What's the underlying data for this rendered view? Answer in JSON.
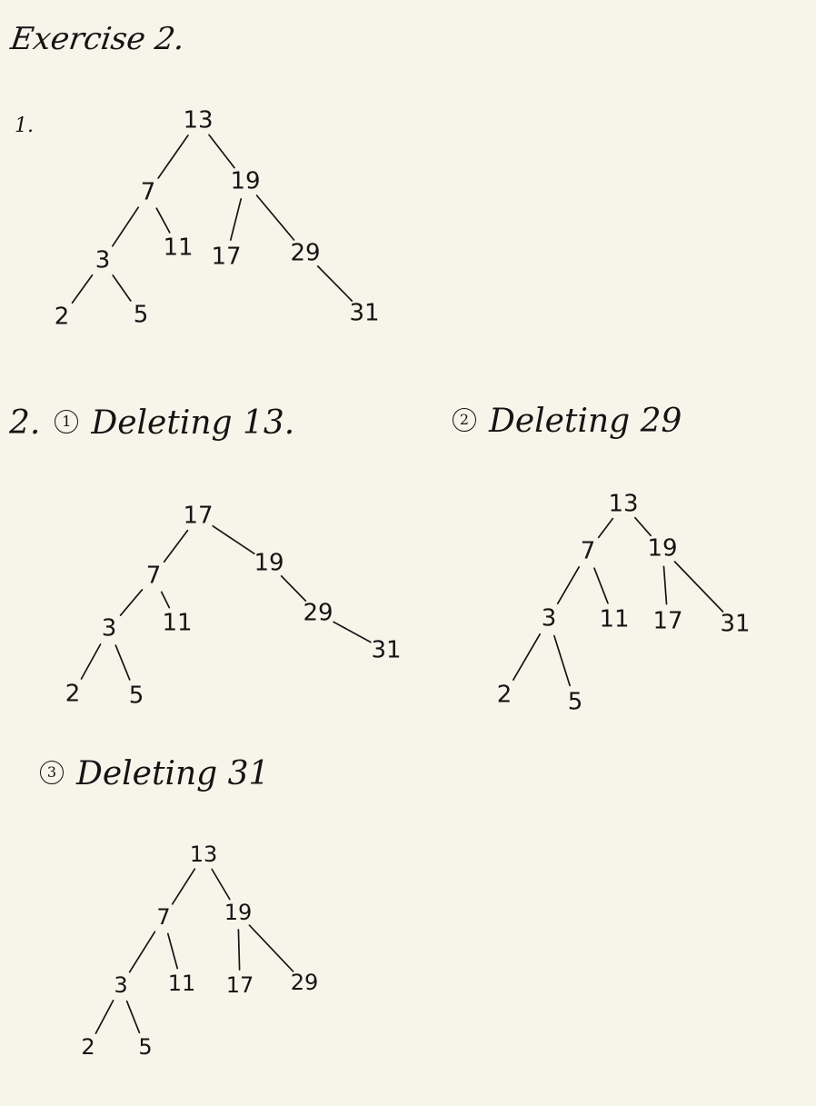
{
  "title": "Exercise 2.",
  "sections": {
    "s1": {
      "label": "1."
    },
    "s2": {
      "prefix": "2.",
      "circle": "1",
      "heading": "Deleting 13."
    },
    "s3": {
      "circle": "2",
      "heading": "Deleting 29"
    },
    "s4": {
      "circle": "3",
      "heading": "Deleting 31"
    }
  },
  "trees": [
    {
      "id": "original",
      "nodes": [
        {
          "id": "n13",
          "label": "13"
        },
        {
          "id": "n7",
          "label": "7"
        },
        {
          "id": "n19",
          "label": "19"
        },
        {
          "id": "n3",
          "label": "3"
        },
        {
          "id": "n11",
          "label": "11"
        },
        {
          "id": "n17",
          "label": "17"
        },
        {
          "id": "n29",
          "label": "29"
        },
        {
          "id": "n2",
          "label": "2"
        },
        {
          "id": "n5",
          "label": "5"
        },
        {
          "id": "n31",
          "label": "31"
        }
      ],
      "edges": [
        [
          "n13",
          "n7"
        ],
        [
          "n13",
          "n19"
        ],
        [
          "n7",
          "n3"
        ],
        [
          "n7",
          "n11"
        ],
        [
          "n19",
          "n17"
        ],
        [
          "n19",
          "n29"
        ],
        [
          "n3",
          "n2"
        ],
        [
          "n3",
          "n5"
        ],
        [
          "n29",
          "n31"
        ]
      ]
    },
    {
      "id": "after-delete-13",
      "nodes": [
        {
          "id": "n17",
          "label": "17"
        },
        {
          "id": "n7",
          "label": "7"
        },
        {
          "id": "n19",
          "label": "19"
        },
        {
          "id": "n3",
          "label": "3"
        },
        {
          "id": "n11",
          "label": "11"
        },
        {
          "id": "n29",
          "label": "29"
        },
        {
          "id": "n2",
          "label": "2"
        },
        {
          "id": "n5",
          "label": "5"
        },
        {
          "id": "n31",
          "label": "31"
        }
      ],
      "edges": [
        [
          "n17",
          "n7"
        ],
        [
          "n17",
          "n19"
        ],
        [
          "n7",
          "n3"
        ],
        [
          "n7",
          "n11"
        ],
        [
          "n19",
          "n29"
        ],
        [
          "n3",
          "n2"
        ],
        [
          "n3",
          "n5"
        ],
        [
          "n29",
          "n31"
        ]
      ]
    },
    {
      "id": "after-delete-29",
      "nodes": [
        {
          "id": "n13",
          "label": "13"
        },
        {
          "id": "n7",
          "label": "7"
        },
        {
          "id": "n19",
          "label": "19"
        },
        {
          "id": "n3",
          "label": "3"
        },
        {
          "id": "n11",
          "label": "11"
        },
        {
          "id": "n17",
          "label": "17"
        },
        {
          "id": "n31",
          "label": "31"
        },
        {
          "id": "n2",
          "label": "2"
        },
        {
          "id": "n5",
          "label": "5"
        }
      ],
      "edges": [
        [
          "n13",
          "n7"
        ],
        [
          "n13",
          "n19"
        ],
        [
          "n7",
          "n3"
        ],
        [
          "n7",
          "n11"
        ],
        [
          "n19",
          "n17"
        ],
        [
          "n19",
          "n31"
        ],
        [
          "n3",
          "n2"
        ],
        [
          "n3",
          "n5"
        ]
      ]
    },
    {
      "id": "after-delete-31",
      "nodes": [
        {
          "id": "n13",
          "label": "13"
        },
        {
          "id": "n7",
          "label": "7"
        },
        {
          "id": "n19",
          "label": "19"
        },
        {
          "id": "n3",
          "label": "3"
        },
        {
          "id": "n11",
          "label": "11"
        },
        {
          "id": "n17",
          "label": "17"
        },
        {
          "id": "n29",
          "label": "29"
        },
        {
          "id": "n2",
          "label": "2"
        },
        {
          "id": "n5",
          "label": "5"
        }
      ],
      "edges": [
        [
          "n13",
          "n7"
        ],
        [
          "n13",
          "n19"
        ],
        [
          "n7",
          "n3"
        ],
        [
          "n7",
          "n11"
        ],
        [
          "n19",
          "n17"
        ],
        [
          "n19",
          "n29"
        ],
        [
          "n3",
          "n2"
        ],
        [
          "n3",
          "n5"
        ]
      ]
    }
  ]
}
